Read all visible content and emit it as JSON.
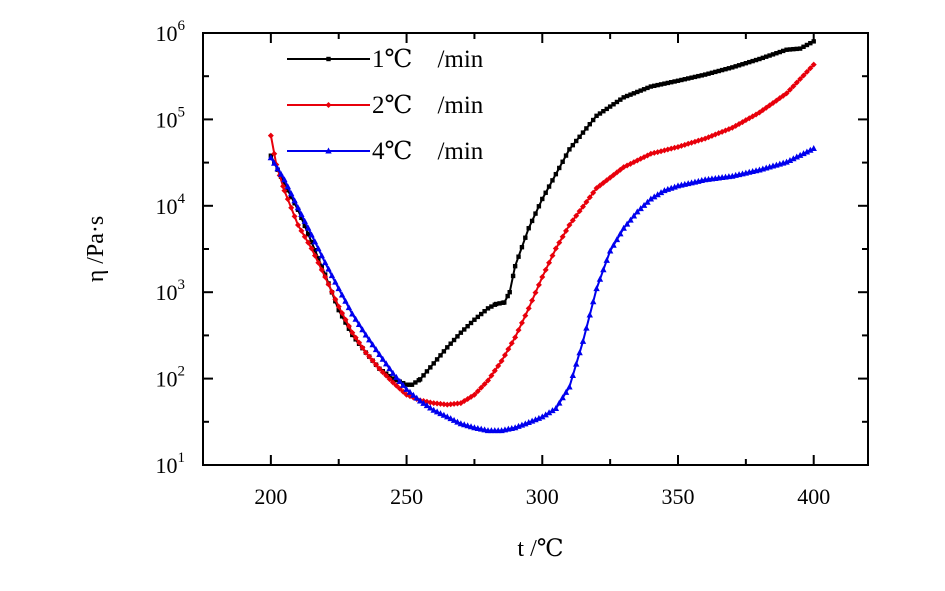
{
  "chart_data": {
    "type": "line",
    "xlabel": "t /℃",
    "ylabel": "η /Pa·s",
    "xlim": [
      175,
      420
    ],
    "ylim_exp": [
      1,
      6
    ],
    "yscale": "log",
    "x_ticks": [
      200,
      250,
      300,
      350,
      400
    ],
    "y_ticks": [
      {
        "base": "10",
        "exp": "1",
        "value": 10
      },
      {
        "base": "10",
        "exp": "2",
        "value": 100
      },
      {
        "base": "10",
        "exp": "3",
        "value": 1000
      },
      {
        "base": "10",
        "exp": "4",
        "value": 10000
      },
      {
        "base": "10",
        "exp": "5",
        "value": 100000
      },
      {
        "base": "10",
        "exp": "6",
        "value": 1000000
      }
    ],
    "legend_position": "top-left",
    "series": [
      {
        "name": "1℃　/min",
        "color": "#000000",
        "marker": "square",
        "x": [
          200,
          205,
          210,
          215,
          220,
          225,
          230,
          235,
          240,
          245,
          250,
          252,
          255,
          260,
          265,
          270,
          275,
          280,
          283,
          286,
          288,
          290,
          295,
          300,
          310,
          320,
          330,
          340,
          350,
          360,
          370,
          380,
          390,
          395,
          400
        ],
        "y": [
          38000,
          18000,
          9000,
          3800,
          1600,
          620,
          320,
          200,
          130,
          100,
          85,
          85,
          98,
          150,
          230,
          340,
          480,
          650,
          730,
          760,
          1000,
          2000,
          5500,
          12000,
          45000,
          110000,
          180000,
          240000,
          280000,
          330000,
          400000,
          500000,
          640000,
          660000,
          800000
        ]
      },
      {
        "name": "2℃　/min",
        "color": "#e8000b",
        "marker": "diamond",
        "x": [
          200,
          202,
          205,
          210,
          215,
          220,
          225,
          230,
          235,
          240,
          245,
          250,
          255,
          260,
          265,
          270,
          275,
          280,
          285,
          290,
          295,
          300,
          305,
          310,
          320,
          330,
          340,
          350,
          360,
          370,
          380,
          390,
          400
        ],
        "y": [
          65000,
          30000,
          15000,
          6000,
          3200,
          1500,
          680,
          340,
          200,
          130,
          90,
          65,
          56,
          52,
          50,
          52,
          65,
          95,
          160,
          300,
          650,
          1500,
          3200,
          6000,
          16000,
          28000,
          40000,
          48000,
          60000,
          80000,
          120000,
          200000,
          430000
        ]
      },
      {
        "name": "4℃　/min",
        "color": "#0000ee",
        "marker": "triangle",
        "x": [
          200,
          205,
          210,
          215,
          220,
          225,
          230,
          235,
          240,
          245,
          250,
          255,
          260,
          265,
          270,
          275,
          280,
          285,
          290,
          295,
          300,
          305,
          310,
          315,
          320,
          325,
          330,
          335,
          340,
          345,
          350,
          360,
          370,
          380,
          390,
          400
        ],
        "y": [
          36000,
          20000,
          9500,
          4600,
          2200,
          1100,
          560,
          320,
          190,
          115,
          75,
          55,
          43,
          36,
          30,
          27,
          25,
          25,
          27,
          31,
          36,
          45,
          80,
          270,
          1100,
          3000,
          5500,
          8500,
          12000,
          15000,
          17000,
          20000,
          22000,
          26000,
          32000,
          46000
        ]
      }
    ]
  }
}
